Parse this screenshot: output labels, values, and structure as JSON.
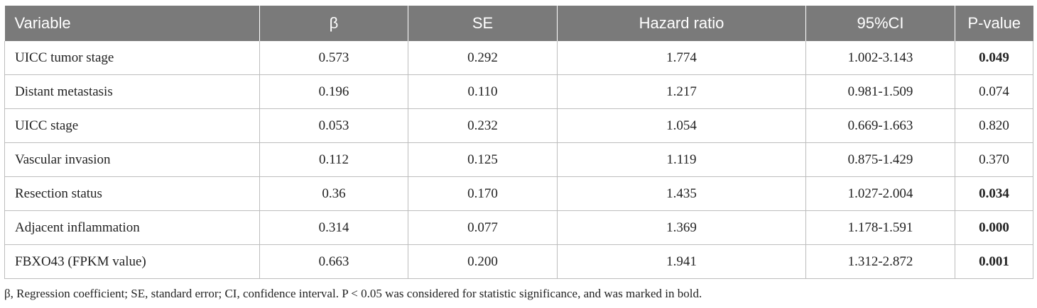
{
  "table": {
    "headers": [
      "Variable",
      "β",
      "SE",
      "Hazard ratio",
      "95%CI",
      "P-value"
    ],
    "rows": [
      {
        "variable": "UICC tumor stage",
        "beta": "0.573",
        "se": "0.292",
        "hr": "1.774",
        "ci": "1.002-3.143",
        "p": "0.049",
        "p_bold": true
      },
      {
        "variable": "Distant metastasis",
        "beta": "0.196",
        "se": "0.110",
        "hr": "1.217",
        "ci": "0.981-1.509",
        "p": "0.074",
        "p_bold": false
      },
      {
        "variable": "UICC stage",
        "beta": "0.053",
        "se": "0.232",
        "hr": "1.054",
        "ci": "0.669-1.663",
        "p": "0.820",
        "p_bold": false
      },
      {
        "variable": "Vascular invasion",
        "beta": "0.112",
        "se": "0.125",
        "hr": "1.119",
        "ci": "0.875-1.429",
        "p": "0.370",
        "p_bold": false
      },
      {
        "variable": "Resection status",
        "beta": "0.36",
        "se": "0.170",
        "hr": "1.435",
        "ci": "1.027-2.004",
        "p": "0.034",
        "p_bold": true
      },
      {
        "variable": "Adjacent inflammation",
        "beta": "0.314",
        "se": "0.077",
        "hr": "1.369",
        "ci": "1.178-1.591",
        "p": "0.000",
        "p_bold": true
      },
      {
        "variable": "FBXO43 (FPKM value)",
        "beta": "0.663",
        "se": "0.200",
        "hr": "1.941",
        "ci": "1.312-2.872",
        "p": "0.001",
        "p_bold": true
      }
    ]
  },
  "footnote": "β, Regression coefficient; SE, standard error; CI, confidence interval. P < 0.05 was considered for statistic significance, and was marked in bold.",
  "colors": {
    "header_bg": "#7a7a7a",
    "header_text": "#ffffff",
    "border": "#bdbdbd"
  }
}
